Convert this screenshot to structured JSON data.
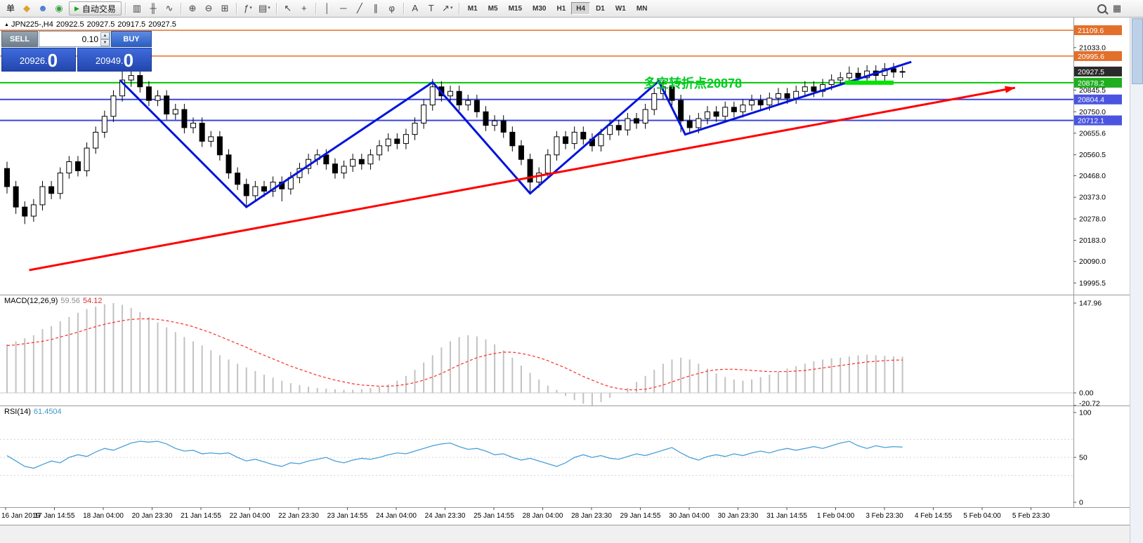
{
  "toolbar": {
    "groups": [
      [
        {
          "name": "new-order-button",
          "glyph": "单",
          "kind": "zh"
        },
        {
          "name": "charts-icon",
          "glyph": "◆",
          "color": "#dfa02f"
        },
        {
          "name": "profile-icon",
          "glyph": "☻",
          "color": "#4273d6"
        },
        {
          "name": "info-icon",
          "glyph": "◉",
          "color": "#35a03f"
        },
        {
          "name": "autotrade-button",
          "kind": "auto",
          "label": "自动交易",
          "play_glyph": "▶"
        }
      ],
      [
        {
          "name": "bar-chart-icon",
          "glyph": "▥"
        },
        {
          "name": "candlestick-chart-icon",
          "glyph": "╫"
        },
        {
          "name": "line-chart-icon",
          "glyph": "∿"
        }
      ],
      [
        {
          "name": "zoom-in-icon",
          "glyph": "⊕"
        },
        {
          "name": "zoom-out-icon",
          "glyph": "⊖"
        },
        {
          "name": "tile-windows-icon",
          "glyph": "⊞"
        }
      ],
      [
        {
          "name": "indicators-icon",
          "glyph": "ƒ",
          "dropdown": true
        },
        {
          "name": "templates-icon",
          "glyph": "▤",
          "dropdown": true
        }
      ],
      [
        {
          "name": "cursor-icon",
          "glyph": "↖"
        },
        {
          "name": "crosshair-icon",
          "glyph": "+"
        }
      ],
      [
        {
          "name": "vertical-line-icon",
          "glyph": "│"
        },
        {
          "name": "horizontal-line-icon",
          "glyph": "─"
        },
        {
          "name": "trendline-icon",
          "glyph": "╱"
        },
        {
          "name": "channel-icon",
          "glyph": "∥"
        },
        {
          "name": "fibonacci-icon",
          "glyph": "φ"
        }
      ],
      [
        {
          "name": "text-tool-icon",
          "glyph": "A"
        },
        {
          "name": "label-tool-icon",
          "glyph": "T"
        },
        {
          "name": "arrow-tool-icon",
          "glyph": "↗",
          "dropdown": true
        }
      ]
    ],
    "timeframes": [
      "M1",
      "M5",
      "M15",
      "M30",
      "H1",
      "H4",
      "D1",
      "W1",
      "MN"
    ],
    "active_timeframe": "H4",
    "right_icons": [
      {
        "name": "search-icon",
        "kind": "mag"
      },
      {
        "name": "new-chart-icon",
        "glyph": "▦"
      }
    ]
  },
  "icons": {
    "object_marker": "▲",
    "spinner_up": "▲",
    "spinner_down": "▼"
  },
  "symbol_header": {
    "name": "JPN225-,H4",
    "open": "20922.5",
    "high": "20927.5",
    "low": "20917.5",
    "close": "20927.5"
  },
  "trade_panel": {
    "sell_label": "SELL",
    "buy_label": "BUY",
    "volume": "0.10",
    "sell_price": "20926.",
    "sell_price_big": "0",
    "buy_price": "20949.",
    "buy_price_big": "0"
  },
  "annotation": {
    "text": "多空转折点20878",
    "color": "#00cc22"
  },
  "indicators": {
    "macd": {
      "label": "MACD(12,26,9)",
      "value_main": "59.56",
      "value_signal": "54.12"
    },
    "rsi": {
      "label": "RSI(14)",
      "value": "61.4504"
    }
  },
  "price_axis": {
    "labels": [
      "21033.0",
      "20845.5",
      "20750.0",
      "20655.6",
      "20560.5",
      "20468.0",
      "20373.0",
      "20278.0",
      "20183.0",
      "20090.0",
      "19995.5"
    ],
    "badges": [
      {
        "text": "21109.6",
        "price": 21109.6,
        "color": "#e2702a"
      },
      {
        "text": "20995.6",
        "price": 20995.6,
        "color": "#e2702a"
      },
      {
        "text": "20927.5",
        "price": 20927.5,
        "color": "#2b2b2b"
      },
      {
        "text": "20878.2",
        "price": 20878.2,
        "color": "#1eae1e"
      },
      {
        "text": "20804.4",
        "price": 20804.4,
        "color": "#4a54e1"
      },
      {
        "text": "20712.1",
        "price": 20712.1,
        "color": "#4a54e1"
      }
    ]
  },
  "h_lines": [
    {
      "price": 21109.6,
      "color": "#e2702a",
      "width": 1.5
    },
    {
      "price": 20995.6,
      "color": "#e2702a",
      "width": 1.5
    },
    {
      "price": 20878.2,
      "color": "#00c800",
      "width": 2
    },
    {
      "price": 20804.4,
      "color": "#3c46dd",
      "width": 2
    },
    {
      "price": 20712.1,
      "color": "#3c46dd",
      "width": 2
    }
  ],
  "overlays": {
    "zigzag": {
      "color": "#0014dc",
      "points": [
        [
          12.8,
          20887
        ],
        [
          27,
          20330
        ],
        [
          48,
          20880
        ],
        [
          59,
          20390
        ],
        [
          73.5,
          20885
        ],
        [
          76.5,
          20650
        ],
        [
          102,
          20970
        ]
      ]
    },
    "trend_arrow": {
      "color": "#ff0000",
      "from": [
        2.5,
        20052
      ],
      "to": [
        113.7,
        20856
      ]
    },
    "support_segment": {
      "price": 20878.2,
      "from_index": 94.5,
      "to_index": 100,
      "color": "#00e400"
    }
  },
  "x_axis": {
    "labels": [
      "16 Jan 2019",
      "17 Jan 14:55",
      "18 Jan 04:00",
      "20 Jan 23:30",
      "21 Jan 14:55",
      "22 Jan 04:00",
      "22 Jan 23:30",
      "23 Jan 14:55",
      "24 Jan 04:00",
      "24 Jan 23:30",
      "25 Jan 14:55",
      "28 Jan 04:00",
      "28 Jan 23:30",
      "29 Jan 14:55",
      "30 Jan 04:00",
      "30 Jan 23:30",
      "31 Jan 14:55",
      "1 Feb 04:00",
      "3 Feb 23:30",
      "4 Feb 14:55",
      "5 Feb 04:00",
      "5 Feb 23:30"
    ]
  },
  "chart_data": [
    {
      "type": "candlestick",
      "symbol": "JPN225-",
      "timeframe": "H4",
      "ylim": [
        19950,
        21150
      ],
      "ohlc": [
        [
          20500,
          20530,
          20390,
          20420
        ],
        [
          20420,
          20445,
          20300,
          20330
        ],
        [
          20330,
          20355,
          20255,
          20290
        ],
        [
          20290,
          20365,
          20265,
          20340
        ],
        [
          20340,
          20445,
          20315,
          20420
        ],
        [
          20420,
          20445,
          20365,
          20390
        ],
        [
          20390,
          20505,
          20365,
          20480
        ],
        [
          20480,
          20555,
          20455,
          20530
        ],
        [
          20530,
          20555,
          20465,
          20490
        ],
        [
          20490,
          20615,
          20465,
          20590
        ],
        [
          20590,
          20685,
          20565,
          20660
        ],
        [
          20660,
          20755,
          20635,
          20730
        ],
        [
          20730,
          20845,
          20705,
          20820
        ],
        [
          20820,
          20960,
          20795,
          20890
        ],
        [
          20890,
          20945,
          20860,
          20910
        ],
        [
          20910,
          20935,
          20835,
          20860
        ],
        [
          20860,
          20885,
          20775,
          20800
        ],
        [
          20800,
          20845,
          20775,
          20820
        ],
        [
          20820,
          20845,
          20715,
          20740
        ],
        [
          20740,
          20785,
          20715,
          20760
        ],
        [
          20760,
          20785,
          20655,
          20680
        ],
        [
          20680,
          20725,
          20655,
          20700
        ],
        [
          20700,
          20725,
          20595,
          20620
        ],
        [
          20620,
          20665,
          20595,
          20640
        ],
        [
          20640,
          20665,
          20535,
          20560
        ],
        [
          20560,
          20585,
          20455,
          20480
        ],
        [
          20480,
          20505,
          20405,
          20430
        ],
        [
          20430,
          20455,
          20330,
          20380
        ],
        [
          20380,
          20445,
          20355,
          20420
        ],
        [
          20420,
          20445,
          20375,
          20400
        ],
        [
          20400,
          20465,
          20375,
          20440
        ],
        [
          20440,
          20465,
          20355,
          20410
        ],
        [
          20410,
          20485,
          20385,
          20460
        ],
        [
          20460,
          20525,
          20435,
          20500
        ],
        [
          20500,
          20565,
          20475,
          20540
        ],
        [
          20540,
          20585,
          20515,
          20560
        ],
        [
          20560,
          20585,
          20495,
          20520
        ],
        [
          20520,
          20545,
          20455,
          20480
        ],
        [
          20480,
          20535,
          20455,
          20510
        ],
        [
          20510,
          20565,
          20485,
          20540
        ],
        [
          20540,
          20565,
          20495,
          20520
        ],
        [
          20520,
          20585,
          20495,
          20560
        ],
        [
          20560,
          20625,
          20535,
          20600
        ],
        [
          20600,
          20655,
          20575,
          20630
        ],
        [
          20630,
          20655,
          20585,
          20610
        ],
        [
          20610,
          20675,
          20585,
          20650
        ],
        [
          20650,
          20725,
          20625,
          20700
        ],
        [
          20700,
          20805,
          20675,
          20780
        ],
        [
          20780,
          20895,
          20755,
          20860
        ],
        [
          20860,
          20885,
          20795,
          20820
        ],
        [
          20820,
          20865,
          20795,
          20840
        ],
        [
          20840,
          20865,
          20755,
          20780
        ],
        [
          20780,
          20825,
          20755,
          20800
        ],
        [
          20800,
          20825,
          20725,
          20750
        ],
        [
          20750,
          20775,
          20665,
          20690
        ],
        [
          20690,
          20735,
          20665,
          20710
        ],
        [
          20710,
          20735,
          20635,
          20660
        ],
        [
          20660,
          20685,
          20575,
          20600
        ],
        [
          20600,
          20625,
          20515,
          20540
        ],
        [
          20540,
          20565,
          20395,
          20440
        ],
        [
          20440,
          20505,
          20415,
          20480
        ],
        [
          20480,
          20585,
          20455,
          20560
        ],
        [
          20560,
          20665,
          20535,
          20640
        ],
        [
          20640,
          20665,
          20585,
          20610
        ],
        [
          20610,
          20685,
          20585,
          20660
        ],
        [
          20660,
          20685,
          20605,
          20630
        ],
        [
          20630,
          20655,
          20575,
          20600
        ],
        [
          20600,
          20675,
          20575,
          20650
        ],
        [
          20650,
          20715,
          20625,
          20690
        ],
        [
          20690,
          20715,
          20645,
          20670
        ],
        [
          20670,
          20745,
          20645,
          20720
        ],
        [
          20720,
          20745,
          20675,
          20700
        ],
        [
          20700,
          20785,
          20675,
          20760
        ],
        [
          20760,
          20855,
          20735,
          20830
        ],
        [
          20830,
          20890,
          20805,
          20860
        ],
        [
          20860,
          20885,
          20775,
          20800
        ],
        [
          20800,
          20825,
          20660,
          20710
        ],
        [
          20710,
          20735,
          20655,
          20680
        ],
        [
          20680,
          20745,
          20655,
          20720
        ],
        [
          20720,
          20775,
          20695,
          20750
        ],
        [
          20750,
          20775,
          20705,
          20730
        ],
        [
          20730,
          20795,
          20705,
          20770
        ],
        [
          20770,
          20795,
          20725,
          20750
        ],
        [
          20750,
          20805,
          20725,
          20780
        ],
        [
          20780,
          20825,
          20755,
          20800
        ],
        [
          20800,
          20825,
          20755,
          20780
        ],
        [
          20780,
          20835,
          20755,
          20810
        ],
        [
          20810,
          20855,
          20785,
          20830
        ],
        [
          20830,
          20855,
          20785,
          20810
        ],
        [
          20810,
          20865,
          20785,
          20840
        ],
        [
          20840,
          20885,
          20815,
          20860
        ],
        [
          20860,
          20885,
          20815,
          20840
        ],
        [
          20840,
          20895,
          20815,
          20870
        ],
        [
          20870,
          20915,
          20845,
          20890
        ],
        [
          20890,
          20925,
          20865,
          20900
        ],
        [
          20900,
          20950,
          20875,
          20920
        ],
        [
          20920,
          20945,
          20875,
          20900
        ],
        [
          20900,
          20955,
          20875,
          20930
        ],
        [
          20930,
          20955,
          20885,
          20910
        ],
        [
          20910,
          20965,
          20885,
          20940
        ],
        [
          20940,
          20965,
          20900,
          20925
        ],
        [
          20925,
          20950,
          20900,
          20927.5
        ]
      ]
    },
    {
      "type": "bar",
      "name": "MACD(12,26,9)",
      "current_macd": 59.56,
      "current_signal": 54.12,
      "axis_labels": [
        {
          "text": "147.96",
          "value": 147.96
        },
        {
          "text": "0.00",
          "value": 0
        },
        {
          "text": "-20.72",
          "value": -20.72
        }
      ],
      "values": [
        80,
        85,
        90,
        95,
        105,
        110,
        118,
        125,
        132,
        138,
        142,
        146,
        148,
        145,
        140,
        133,
        125,
        116,
        108,
        100,
        92,
        85,
        78,
        70,
        62,
        55,
        48,
        42,
        36,
        30,
        25,
        20,
        16,
        13,
        10,
        8,
        7,
        6,
        5,
        5,
        6,
        8,
        10,
        14,
        20,
        28,
        38,
        50,
        62,
        75,
        85,
        92,
        95,
        93,
        88,
        80,
        70,
        58,
        45,
        33,
        22,
        12,
        5,
        -5,
        -12,
        -18,
        -20.72,
        -15,
        -8,
        0,
        8,
        18,
        28,
        38,
        48,
        55,
        58,
        55,
        48,
        40,
        32,
        26,
        22,
        20,
        22,
        26,
        30,
        35,
        40,
        44,
        48,
        52,
        55,
        57,
        58,
        60,
        62,
        63,
        62,
        61,
        60,
        59.56
      ],
      "signal": [
        78,
        79,
        81,
        83,
        85,
        88,
        92,
        96,
        100,
        105,
        109,
        113,
        116,
        119,
        121,
        122,
        122,
        121,
        119,
        116,
        113,
        109,
        104,
        99,
        93,
        87,
        81,
        75,
        68,
        62,
        56,
        50,
        44,
        39,
        34,
        29,
        25,
        21,
        18,
        15,
        13,
        12,
        11,
        11,
        12,
        14,
        17,
        21,
        26,
        32,
        39,
        46,
        52,
        58,
        62,
        65,
        67,
        67,
        65,
        62,
        58,
        53,
        47,
        41,
        34,
        27,
        21,
        15,
        10,
        7,
        5,
        5,
        6,
        9,
        13,
        18,
        23,
        28,
        32,
        36,
        38,
        39,
        39,
        38,
        37,
        36,
        35,
        35,
        35,
        36,
        37,
        39,
        41,
        43,
        45,
        47,
        49,
        51,
        52,
        53,
        54,
        54.12
      ]
    },
    {
      "type": "line",
      "name": "RSI(14)",
      "current": 61.4504,
      "levels": [
        30,
        50,
        70
      ],
      "axis_labels": [
        {
          "text": "100",
          "value": 100
        },
        {
          "text": "50",
          "value": 50
        },
        {
          "text": "0",
          "value": 0
        }
      ],
      "values": [
        52,
        46,
        40,
        38,
        42,
        46,
        44,
        50,
        53,
        51,
        56,
        60,
        58,
        62,
        66,
        68,
        67,
        68,
        65,
        60,
        57,
        58,
        54,
        55,
        54,
        55,
        50,
        46,
        48,
        45,
        42,
        40,
        44,
        43,
        46,
        48,
        50,
        46,
        44,
        47,
        49,
        48,
        50,
        53,
        55,
        54,
        57,
        60,
        63,
        65,
        66,
        62,
        59,
        60,
        57,
        53,
        54,
        50,
        47,
        49,
        46,
        43,
        40,
        44,
        50,
        53,
        50,
        52,
        49,
        48,
        51,
        54,
        52,
        55,
        58,
        61,
        55,
        50,
        47,
        51,
        53,
        51,
        54,
        52,
        55,
        57,
        55,
        58,
        60,
        58,
        60,
        62,
        60,
        63,
        66,
        68,
        63,
        60,
        63,
        61,
        62,
        61.45
      ]
    }
  ]
}
